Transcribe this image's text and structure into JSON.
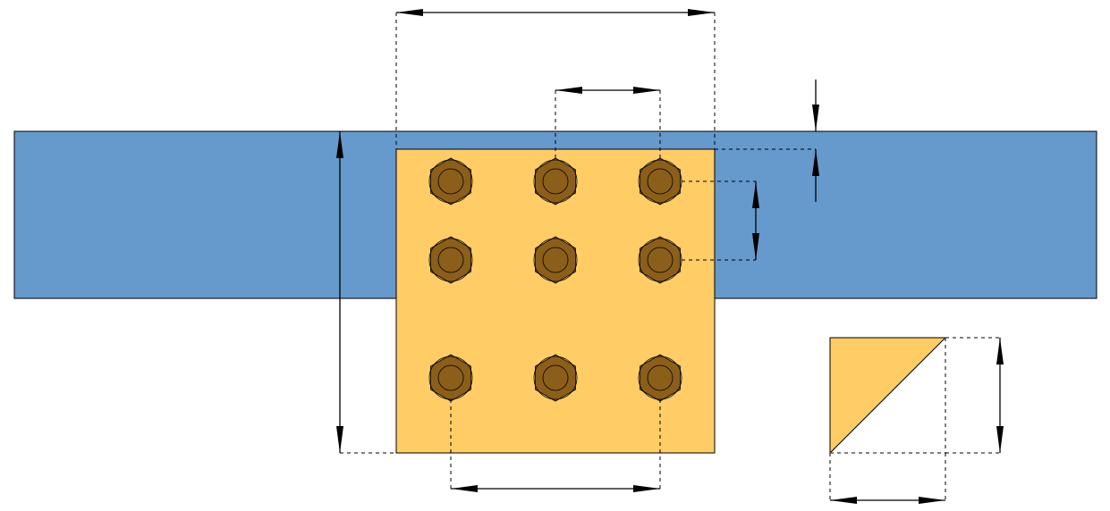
{
  "colors": {
    "beam": "#6699cc",
    "plate": "#ffcc66",
    "bolt": "#8b5e1a",
    "line": "#000000",
    "background": "#ffffff"
  },
  "bolt_grid": {
    "rows": 3,
    "columns": 3,
    "count": 9
  },
  "icons": {
    "bolt": "hex-bolt-icon",
    "weld": "fillet-weld-icon"
  }
}
